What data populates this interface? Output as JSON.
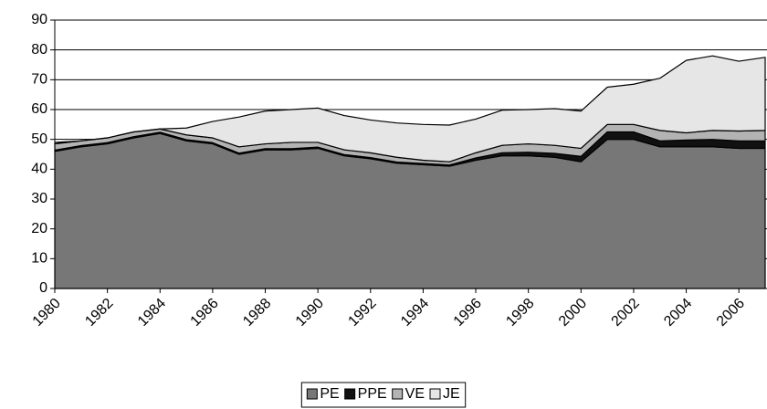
{
  "chart_data": {
    "type": "stacked_area",
    "x": [
      1980,
      1981,
      1982,
      1983,
      1984,
      1985,
      1986,
      1987,
      1988,
      1989,
      1990,
      1991,
      1992,
      1993,
      1994,
      1995,
      1996,
      1997,
      1998,
      1999,
      2000,
      2001,
      2002,
      2003,
      2004,
      2005,
      2006,
      2007
    ],
    "series": [
      {
        "name": "PE",
        "color": "#777777",
        "values": [
          46,
          47.5,
          48.5,
          50.5,
          52,
          49.5,
          48.5,
          45,
          46.5,
          46.5,
          47,
          44.5,
          43.5,
          42,
          41.5,
          41,
          43,
          44.5,
          44.5,
          44,
          42.5,
          50,
          50,
          47.5,
          47.5,
          47.5,
          47,
          47
        ]
      },
      {
        "name": "PPE",
        "color": "#111111",
        "values": [
          0.4,
          0.4,
          0.4,
          0.4,
          0.4,
          0.4,
          0.4,
          0.4,
          0.4,
          0.4,
          0.4,
          0.4,
          0.4,
          0.4,
          0.4,
          0.4,
          0.8,
          1,
          1.2,
          1.3,
          1.8,
          2.5,
          2.5,
          2,
          2.3,
          2.5,
          2.5,
          2.5
        ]
      },
      {
        "name": "VE",
        "color": "#b3b3b3",
        "values": [
          2.1,
          1.6,
          1.6,
          1.6,
          1.1,
          1.6,
          1.6,
          2.1,
          1.6,
          2.1,
          1.6,
          1.6,
          1.6,
          1.6,
          1.1,
          1.1,
          1.7,
          2.5,
          2.8,
          2.7,
          2.7,
          2.5,
          2.5,
          3.5,
          2.4,
          3,
          3.3,
          3.5
        ]
      },
      {
        "name": "JE",
        "color": "#e6e6e6",
        "values": [
          0.5,
          0,
          0,
          0,
          0,
          2.3,
          5.5,
          10,
          11,
          11,
          11.5,
          11.5,
          11,
          11.5,
          12,
          12.3,
          11.3,
          11.8,
          11.5,
          12.3,
          12.5,
          12.5,
          13.5,
          17.5,
          24.3,
          25,
          23.4,
          24.5
        ]
      }
    ],
    "xlim": [
      1980,
      2007
    ],
    "xticks": [
      1980,
      1982,
      1984,
      1986,
      1988,
      1990,
      1992,
      1994,
      1996,
      1998,
      2000,
      2002,
      2004,
      2006
    ],
    "ylim": [
      0,
      90
    ],
    "yticks": [
      0,
      10,
      20,
      30,
      40,
      50,
      60,
      70,
      80,
      90
    ],
    "grid": true,
    "legend": "bottom"
  }
}
